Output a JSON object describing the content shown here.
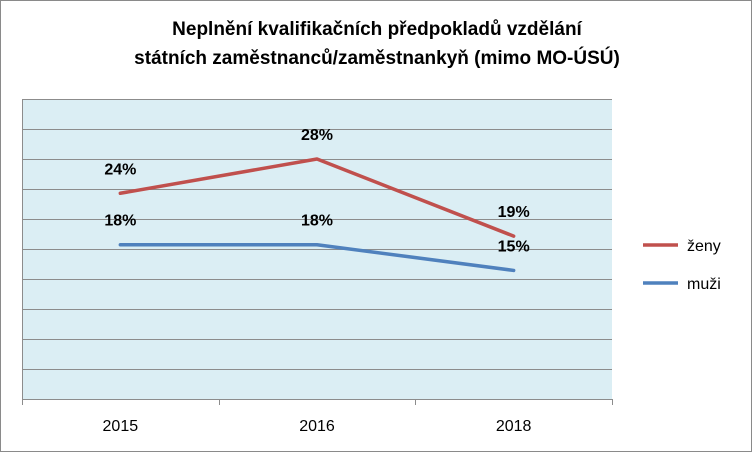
{
  "chart_data": {
    "type": "line",
    "title_line1": "Neplnění kvalifikačních předpokladů vzdělání",
    "title_line2": "státních zaměstnanců/zaměstnankyň (mimo MO-ÚSÚ)",
    "categories": [
      "2015",
      "2016",
      "2018"
    ],
    "series": [
      {
        "name": "ženy",
        "values": [
          24,
          28,
          19
        ],
        "labels": [
          "24%",
          "28%",
          "19%"
        ],
        "color": "#c0504d"
      },
      {
        "name": "muži",
        "values": [
          18,
          18,
          15
        ],
        "labels": [
          "18%",
          "18%",
          "15%"
        ],
        "color": "#4f81bd"
      }
    ],
    "ylim": [
      0,
      35
    ],
    "grid": true,
    "plot_background": "#dbeef4",
    "legend_position": "right"
  }
}
